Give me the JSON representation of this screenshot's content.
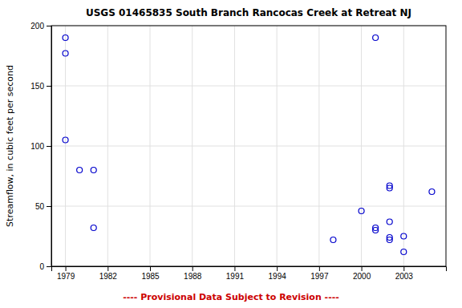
{
  "chart_data": {
    "type": "scatter",
    "title": "USGS 01465835 South Branch Rancocas Creek at Retreat NJ",
    "ylabel": "Streamflow, in cubic feet per second",
    "annotations": [
      {
        "text": "---- Provisional Data Subject to Revision ----",
        "color": "#cc0000"
      }
    ],
    "x": [
      1979,
      1979,
      1979,
      1980,
      1981,
      1981,
      1998,
      2000,
      2001,
      2001,
      2001,
      2002,
      2002,
      2002,
      2002,
      2002,
      2003,
      2003,
      2005
    ],
    "values": [
      190,
      177,
      105,
      80,
      80,
      32,
      22,
      46,
      190,
      32,
      30,
      67,
      65,
      37,
      24,
      22,
      25,
      12,
      62
    ],
    "color": "#0000cc",
    "marker": "open-circle",
    "xlim": [
      1978,
      2006
    ],
    "ylim": [
      0,
      200
    ],
    "xticks": [
      1979,
      1982,
      1985,
      1988,
      1991,
      1994,
      1997,
      2000,
      2003
    ],
    "yticks": [
      0,
      50,
      100,
      150,
      200
    ],
    "grid": true
  }
}
